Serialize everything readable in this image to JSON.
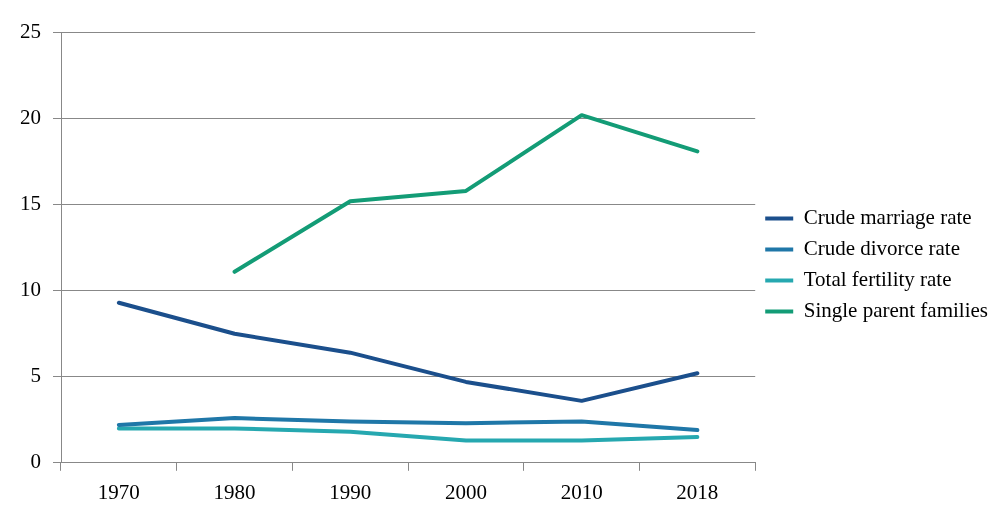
{
  "chart_data": {
    "type": "line",
    "categories": [
      "1970",
      "1980",
      "1990",
      "2000",
      "2010",
      "2018"
    ],
    "series": [
      {
        "name": "Crude marriage rate",
        "color": "#1b4f8c",
        "values": [
          9.3,
          7.5,
          6.4,
          4.7,
          3.6,
          5.2
        ]
      },
      {
        "name": "Crude divorce rate",
        "color": "#1f77a8",
        "values": [
          2.2,
          2.6,
          2.4,
          2.3,
          2.4,
          1.9
        ]
      },
      {
        "name": "Total fertility rate",
        "color": "#26a8b0",
        "values": [
          2.0,
          2.0,
          1.8,
          1.3,
          1.3,
          1.5
        ]
      },
      {
        "name": "Single parent families",
        "color": "#139c76",
        "values": [
          null,
          11.1,
          15.2,
          15.8,
          20.2,
          18.1
        ]
      }
    ],
    "ylim": [
      0,
      25
    ],
    "yticks": [
      0,
      5,
      10,
      15,
      20,
      25
    ],
    "grid": "y",
    "legend": "right",
    "marker": "none",
    "line_style": "solid"
  }
}
